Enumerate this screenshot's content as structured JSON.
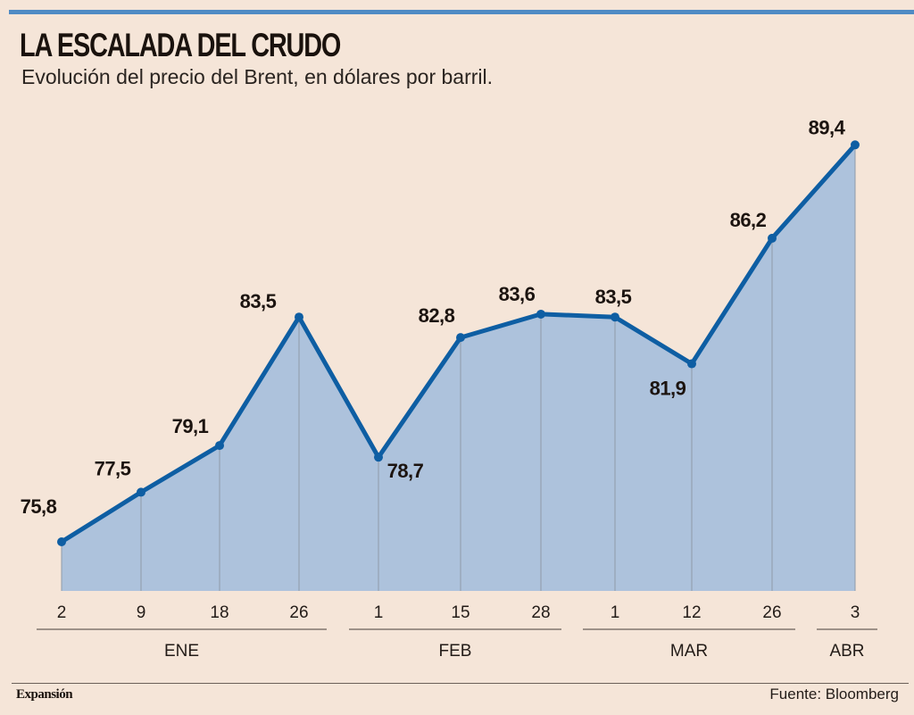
{
  "header": {
    "title": "LA ESCALADA DEL CRUDO",
    "subtitle": "Evolución del precio del Brent, en dólares por barril."
  },
  "footer": {
    "brand": "Expansión",
    "source": "Fuente: Bloomberg"
  },
  "colors": {
    "background": "#f5e5d8",
    "line": "#0e5ea3",
    "area": "#adc2dc",
    "top_bar": "#4f8bc4"
  },
  "chart_data": {
    "type": "area",
    "title": "LA ESCALADA DEL CRUDO",
    "subtitle": "Evolución del precio del Brent, en dólares por barril.",
    "xlabel": "",
    "ylabel": "",
    "ylim": [
      74.1,
      90
    ],
    "grid": false,
    "x": [
      "2",
      "9",
      "18",
      "26",
      "1",
      "15",
      "28",
      "1",
      "12",
      "26",
      "3"
    ],
    "months": [
      {
        "label": "ENE",
        "start": 0,
        "end": 3
      },
      {
        "label": "FEB",
        "start": 4,
        "end": 6
      },
      {
        "label": "MAR",
        "start": 7,
        "end": 9
      },
      {
        "label": "ABR",
        "start": 10,
        "end": 10
      }
    ],
    "series": [
      {
        "name": "Brent",
        "values": [
          75.8,
          77.5,
          79.1,
          83.5,
          78.7,
          82.8,
          83.6,
          83.5,
          81.9,
          86.2,
          89.4
        ],
        "labels": [
          "75,8",
          "77,5",
          "79,1",
          "83,5",
          "78,7",
          "82,8",
          "83,6",
          "83,5",
          "81,9",
          "86,2",
          "89,4"
        ]
      }
    ]
  }
}
